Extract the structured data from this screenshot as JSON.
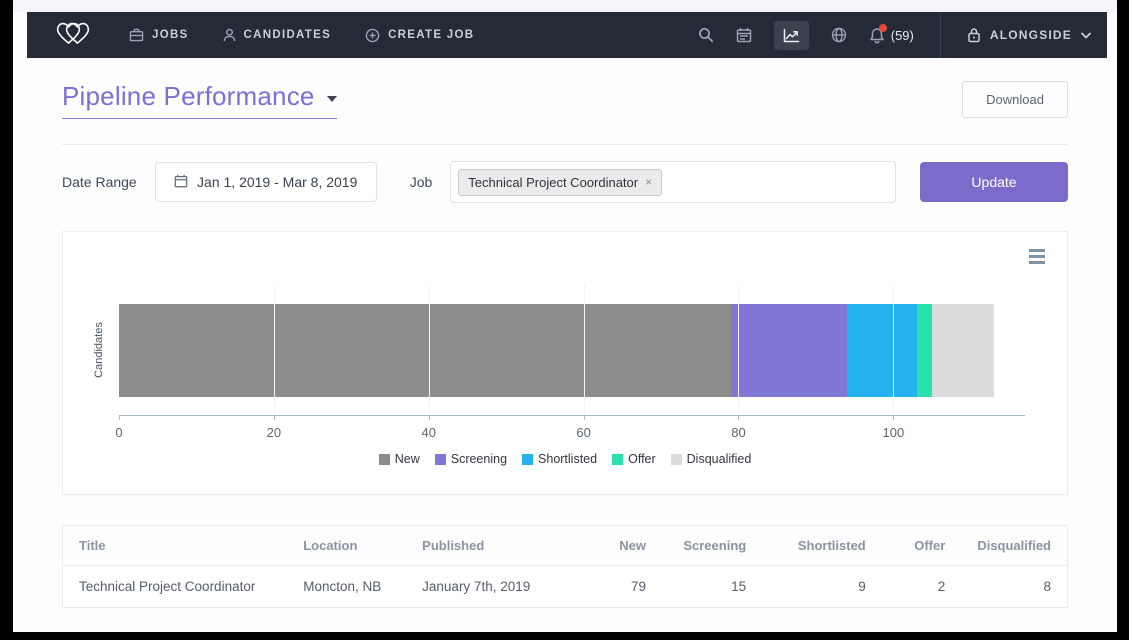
{
  "navbar": {
    "items": [
      {
        "icon": "briefcase-icon",
        "label": "JOBS"
      },
      {
        "icon": "person-icon",
        "label": "CANDIDATES"
      },
      {
        "icon": "plus-circle-icon",
        "label": "CREATE JOB"
      }
    ],
    "notification_count": "(59)",
    "account_label": "ALONGSIDE"
  },
  "header": {
    "title": "Pipeline Performance",
    "download_label": "Download"
  },
  "filters": {
    "date_range_label": "Date Range",
    "date_range_value": "Jan 1, 2019 - Mar 8, 2019",
    "job_label": "Job",
    "job_tag": "Technical Project Coordinator",
    "job_tag_remove": "×",
    "update_label": "Update"
  },
  "chart_data": {
    "type": "bar",
    "orientation": "horizontal",
    "stacked": true,
    "categories": [
      "Candidates"
    ],
    "series": [
      {
        "name": "New",
        "values": [
          79
        ],
        "color": "#8c8c8c"
      },
      {
        "name": "Screening",
        "values": [
          15
        ],
        "color": "#8377d6"
      },
      {
        "name": "Shortlisted",
        "values": [
          9
        ],
        "color": "#23b1ef"
      },
      {
        "name": "Offer",
        "values": [
          2
        ],
        "color": "#2ce0ad"
      },
      {
        "name": "Disqualified",
        "values": [
          8
        ],
        "color": "#dcdcdc"
      }
    ],
    "total": 113,
    "xlim": [
      0,
      117
    ],
    "xticks": [
      0,
      20,
      40,
      60,
      80,
      100
    ],
    "ylabel": "Candidates",
    "xlabel": "",
    "grid": true,
    "legend_position": "bottom"
  },
  "table": {
    "columns": [
      "Title",
      "Location",
      "Published",
      "New",
      "Screening",
      "Shortlisted",
      "Offer",
      "Disqualified"
    ],
    "rows": [
      [
        "Technical Project Coordinator",
        "Moncton, NB",
        "January 7th, 2019",
        "79",
        "15",
        "9",
        "2",
        "8"
      ]
    ]
  }
}
